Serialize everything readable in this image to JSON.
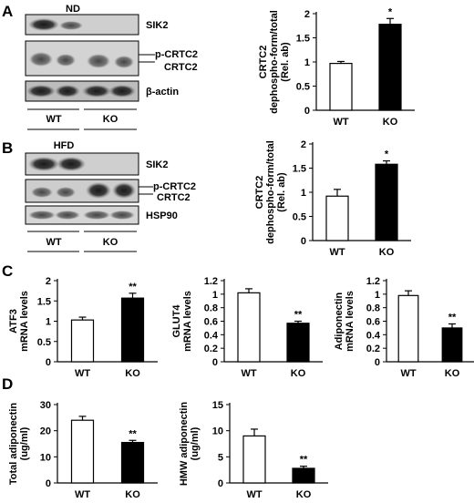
{
  "panels": {
    "A": {
      "letter": "A",
      "condition": "ND",
      "rows": [
        "SIK2",
        "p-CRTC2",
        "CRTC2",
        "β-actin"
      ],
      "groups": [
        "WT",
        "KO"
      ]
    },
    "B": {
      "letter": "B",
      "condition": "HFD",
      "rows": [
        "SIK2",
        "p-CRTC2",
        "CRTC2",
        "HSP90"
      ],
      "groups": [
        "WT",
        "KO"
      ]
    },
    "C": {
      "letter": "C"
    },
    "D": {
      "letter": "D"
    }
  },
  "chart_data": [
    {
      "id": "A",
      "type": "bar",
      "categories": [
        "WT",
        "KO"
      ],
      "values": [
        0.97,
        1.78
      ],
      "errors": [
        0.04,
        0.12
      ],
      "colors": [
        "#ffffff",
        "#000000"
      ],
      "significance": [
        "",
        "*"
      ],
      "ylabel": [
        "CRTC2",
        "dephospho-form/total",
        "(Rel. ab)"
      ],
      "ylim": [
        0,
        2
      ],
      "yticks": [
        0,
        0.5,
        1,
        1.5,
        2
      ],
      "yticklabels": [
        "0",
        "0.5",
        "1",
        "1.5",
        "2"
      ]
    },
    {
      "id": "B",
      "type": "bar",
      "categories": [
        "WT",
        "KO"
      ],
      "values": [
        0.92,
        1.58
      ],
      "errors": [
        0.14,
        0.07
      ],
      "colors": [
        "#ffffff",
        "#000000"
      ],
      "significance": [
        "",
        "*"
      ],
      "ylabel": [
        "CRTC2",
        "dephospho-form/total",
        "(Rel. ab)"
      ],
      "ylim": [
        0,
        2
      ],
      "yticks": [
        0,
        0.5,
        1,
        1.5,
        2
      ],
      "yticklabels": [
        "0",
        "0.5",
        "1",
        "1.5",
        "2"
      ]
    },
    {
      "id": "C1",
      "type": "bar",
      "categories": [
        "WT",
        "KO"
      ],
      "values": [
        1.03,
        1.57
      ],
      "errors": [
        0.07,
        0.12
      ],
      "colors": [
        "#ffffff",
        "#000000"
      ],
      "significance": [
        "",
        "**"
      ],
      "ylabel": [
        "ATF3",
        "mRNA levels"
      ],
      "ylim": [
        0,
        2
      ],
      "yticks": [
        0,
        0.5,
        1,
        1.5,
        2
      ],
      "yticklabels": [
        "0",
        "0.5",
        "1",
        "1.5",
        "2"
      ]
    },
    {
      "id": "C2",
      "type": "bar",
      "categories": [
        "WT",
        "KO"
      ],
      "values": [
        1.02,
        0.57
      ],
      "errors": [
        0.06,
        0.03
      ],
      "colors": [
        "#ffffff",
        "#000000"
      ],
      "significance": [
        "",
        "**"
      ],
      "ylabel": [
        "GLUT4",
        "mRNA levels"
      ],
      "ylim": [
        0,
        1.2
      ],
      "yticks": [
        0,
        0.2,
        0.4,
        0.6,
        0.8,
        1,
        1.2
      ],
      "yticklabels": [
        "0",
        "0.2",
        "0.4",
        "0.6",
        "0.8",
        "1",
        "1.2"
      ]
    },
    {
      "id": "C3",
      "type": "bar",
      "categories": [
        "WT",
        "KO"
      ],
      "values": [
        0.98,
        0.5
      ],
      "errors": [
        0.07,
        0.06
      ],
      "colors": [
        "#ffffff",
        "#000000"
      ],
      "significance": [
        "",
        "**"
      ],
      "ylabel": [
        "Adiponectin",
        "mRNA levels"
      ],
      "ylim": [
        0,
        1.2
      ],
      "yticks": [
        0,
        0.2,
        0.4,
        0.6,
        0.8,
        1,
        1.2
      ],
      "yticklabels": [
        "0",
        "0.2",
        "0.4",
        "0.6",
        "0.8",
        "1",
        "1.2"
      ]
    },
    {
      "id": "D1",
      "type": "bar",
      "categories": [
        "WT",
        "KO"
      ],
      "values": [
        24,
        15.5
      ],
      "errors": [
        1.5,
        0.8
      ],
      "colors": [
        "#ffffff",
        "#000000"
      ],
      "significance": [
        "",
        "**"
      ],
      "ylabel": [
        "Total adiponectin",
        "(ug/ml)"
      ],
      "ylim": [
        0,
        30
      ],
      "yticks": [
        0,
        10,
        20,
        30
      ],
      "yticklabels": [
        "0",
        "10",
        "20",
        "30"
      ]
    },
    {
      "id": "D2",
      "type": "bar",
      "categories": [
        "WT",
        "KO"
      ],
      "values": [
        9,
        2.8
      ],
      "errors": [
        1.3,
        0.4
      ],
      "colors": [
        "#ffffff",
        "#000000"
      ],
      "significance": [
        "",
        "**"
      ],
      "ylabel": [
        "HMW adiponectin",
        "(ug/ml)"
      ],
      "ylim": [
        0,
        15
      ],
      "yticks": [
        0,
        5,
        10,
        15
      ],
      "yticklabels": [
        "0",
        "5",
        "10",
        "15"
      ]
    }
  ]
}
